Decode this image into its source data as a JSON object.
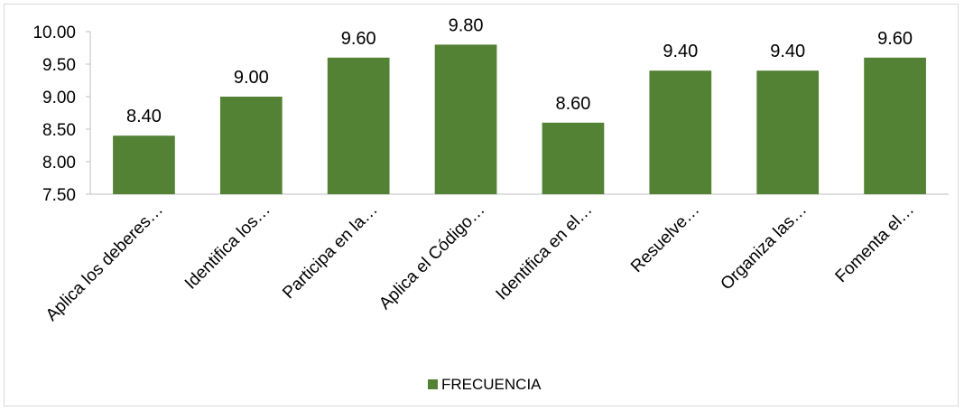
{
  "chart_data": {
    "type": "bar",
    "categories": [
      "Aplica los deberes…",
      "Identifica los…",
      "Participa en la…",
      "Aplica el  Código…",
      "Identifica en el…",
      "Resuelve…",
      "Organiza las…",
      "Fomenta el…"
    ],
    "series": [
      {
        "name": "FRECUENCIA",
        "values": [
          8.4,
          9.0,
          9.6,
          9.8,
          8.6,
          9.4,
          9.4,
          9.6
        ]
      }
    ],
    "data_labels": [
      "8.40",
      "9.00",
      "9.60",
      "9.80",
      "8.60",
      "9.40",
      "9.40",
      "9.60"
    ],
    "ylim": [
      7.5,
      10.0
    ],
    "yticks": [
      "7.50",
      "8.00",
      "8.50",
      "9.00",
      "9.50",
      "10.00"
    ],
    "title": "",
    "xlabel": "",
    "ylabel": "",
    "grid": false,
    "legend_position": "bottom",
    "colors": {
      "bar": "#548235",
      "axis": "#bfbfbf",
      "frame": "#d9d9d9"
    }
  }
}
